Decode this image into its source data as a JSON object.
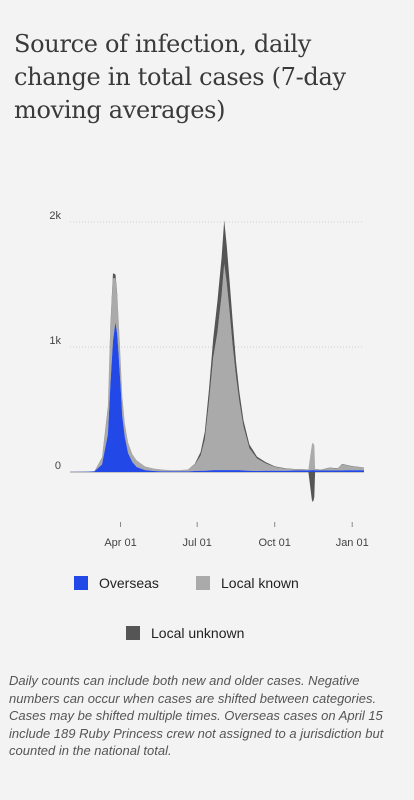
{
  "title": "Source of infection, daily change in total cases (7-day moving averages)",
  "legend": {
    "overseas": "Overseas",
    "local_known": "Local known",
    "local_unknown": "Local unknown"
  },
  "colors": {
    "overseas": "#2348e8",
    "local_known": "#aaaaaa",
    "local_unknown": "#555555",
    "background": "#f3f3f3"
  },
  "note": "Daily counts can include both new and older cases. Negative numbers can occur when cases are shifted between categories. Cases may be shifted multiple times. Overseas cases on April 15 include 189 Ruby Princess crew not assigned to a jurisdiction but counted in the national total.",
  "chart_data": {
    "type": "area",
    "stacked": true,
    "x_type": "date",
    "xlim": [
      "2020-02-01",
      "2021-01-15"
    ],
    "ylim": [
      -250,
      2000
    ],
    "grid": true,
    "y_ticks": [
      {
        "value": 2000,
        "label": "2k"
      },
      {
        "value": 1000,
        "label": "1k"
      },
      {
        "value": 0,
        "label": "0"
      }
    ],
    "x_ticks": [
      {
        "value": "2020-04-01",
        "label": "Apr 01"
      },
      {
        "value": "2020-07-01",
        "label": "Jul 01"
      },
      {
        "value": "2020-10-01",
        "label": "Oct 01"
      },
      {
        "value": "2021-01-01",
        "label": "Jan 01"
      }
    ],
    "x": [
      "2020-02-01",
      "2020-02-20",
      "2020-03-01",
      "2020-03-10",
      "2020-03-17",
      "2020-03-20",
      "2020-03-23",
      "2020-03-26",
      "2020-03-28",
      "2020-03-30",
      "2020-04-01",
      "2020-04-03",
      "2020-04-06",
      "2020-04-10",
      "2020-04-15",
      "2020-04-20",
      "2020-04-30",
      "2020-05-10",
      "2020-05-20",
      "2020-05-30",
      "2020-06-10",
      "2020-06-20",
      "2020-06-28",
      "2020-07-05",
      "2020-07-10",
      "2020-07-15",
      "2020-07-20",
      "2020-07-25",
      "2020-07-30",
      "2020-08-02",
      "2020-08-05",
      "2020-08-08",
      "2020-08-12",
      "2020-08-16",
      "2020-08-20",
      "2020-08-25",
      "2020-09-01",
      "2020-09-10",
      "2020-09-20",
      "2020-10-01",
      "2020-10-15",
      "2020-10-25",
      "2020-11-01",
      "2020-11-10",
      "2020-11-14",
      "2020-11-15",
      "2020-11-16",
      "2020-11-17",
      "2020-11-18",
      "2020-11-25",
      "2020-12-05",
      "2020-12-15",
      "2020-12-20",
      "2020-12-25",
      "2021-01-01",
      "2021-01-15"
    ],
    "series": [
      {
        "name": "Overseas",
        "values": [
          0,
          2,
          5,
          60,
          300,
          700,
          1050,
          1200,
          1100,
          900,
          700,
          450,
          280,
          150,
          80,
          40,
          15,
          8,
          5,
          5,
          5,
          5,
          8,
          10,
          10,
          12,
          15,
          15,
          15,
          15,
          15,
          15,
          15,
          15,
          15,
          12,
          10,
          8,
          10,
          10,
          10,
          12,
          12,
          12,
          15,
          15,
          15,
          15,
          12,
          12,
          12,
          12,
          12,
          14,
          14,
          14
        ]
      },
      {
        "name": "Local known",
        "values": [
          0,
          0,
          2,
          50,
          200,
          450,
          500,
          350,
          300,
          250,
          200,
          150,
          100,
          80,
          60,
          50,
          30,
          20,
          15,
          10,
          10,
          15,
          50,
          120,
          250,
          550,
          900,
          1100,
          1400,
          1650,
          1500,
          1300,
          1000,
          750,
          550,
          350,
          180,
          100,
          60,
          30,
          15,
          10,
          10,
          5,
          200,
          220,
          210,
          200,
          10,
          5,
          20,
          15,
          50,
          40,
          30,
          20
        ]
      },
      {
        "name": "Local unknown",
        "values": [
          0,
          0,
          0,
          5,
          20,
          30,
          40,
          30,
          25,
          15,
          10,
          8,
          5,
          3,
          2,
          2,
          0,
          0,
          0,
          0,
          0,
          0,
          5,
          30,
          60,
          100,
          150,
          250,
          300,
          350,
          300,
          250,
          200,
          120,
          80,
          50,
          30,
          15,
          10,
          5,
          3,
          2,
          2,
          2,
          -220,
          -240,
          -230,
          -200,
          2,
          2,
          3,
          3,
          3,
          3,
          3,
          2
        ]
      }
    ]
  }
}
